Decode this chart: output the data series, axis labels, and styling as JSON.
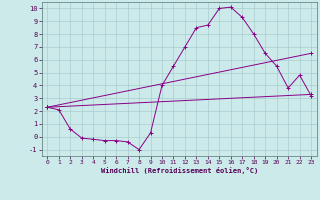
{
  "xlabel": "Windchill (Refroidissement éolien,°C)",
  "background_color": "#cceaea",
  "line_color": "#880088",
  "grid_color": "#aacccc",
  "ylim": [
    -1.5,
    10.5
  ],
  "xlim": [
    -0.5,
    23.5
  ],
  "yticks": [
    -1,
    0,
    1,
    2,
    3,
    4,
    5,
    6,
    7,
    8,
    9,
    10
  ],
  "xticks": [
    0,
    1,
    2,
    3,
    4,
    5,
    6,
    7,
    8,
    9,
    10,
    11,
    12,
    13,
    14,
    15,
    16,
    17,
    18,
    19,
    20,
    21,
    22,
    23
  ],
  "line1_x": [
    0,
    1,
    2,
    3,
    4,
    5,
    6,
    7,
    8,
    9,
    10,
    11,
    12,
    13,
    14,
    15,
    16,
    17,
    18,
    19,
    20,
    21,
    22,
    23
  ],
  "line1_y": [
    2.3,
    2.1,
    0.6,
    -0.1,
    -0.2,
    -0.3,
    -0.3,
    -0.4,
    -1.0,
    0.3,
    4.0,
    5.5,
    7.0,
    8.5,
    8.7,
    10.0,
    10.1,
    9.3,
    8.0,
    6.5,
    5.5,
    3.8,
    4.8,
    3.2
  ],
  "line2_x": [
    0,
    23
  ],
  "line2_y": [
    2.3,
    3.3
  ],
  "line3_x": [
    0,
    23
  ],
  "line3_y": [
    2.3,
    6.5
  ]
}
